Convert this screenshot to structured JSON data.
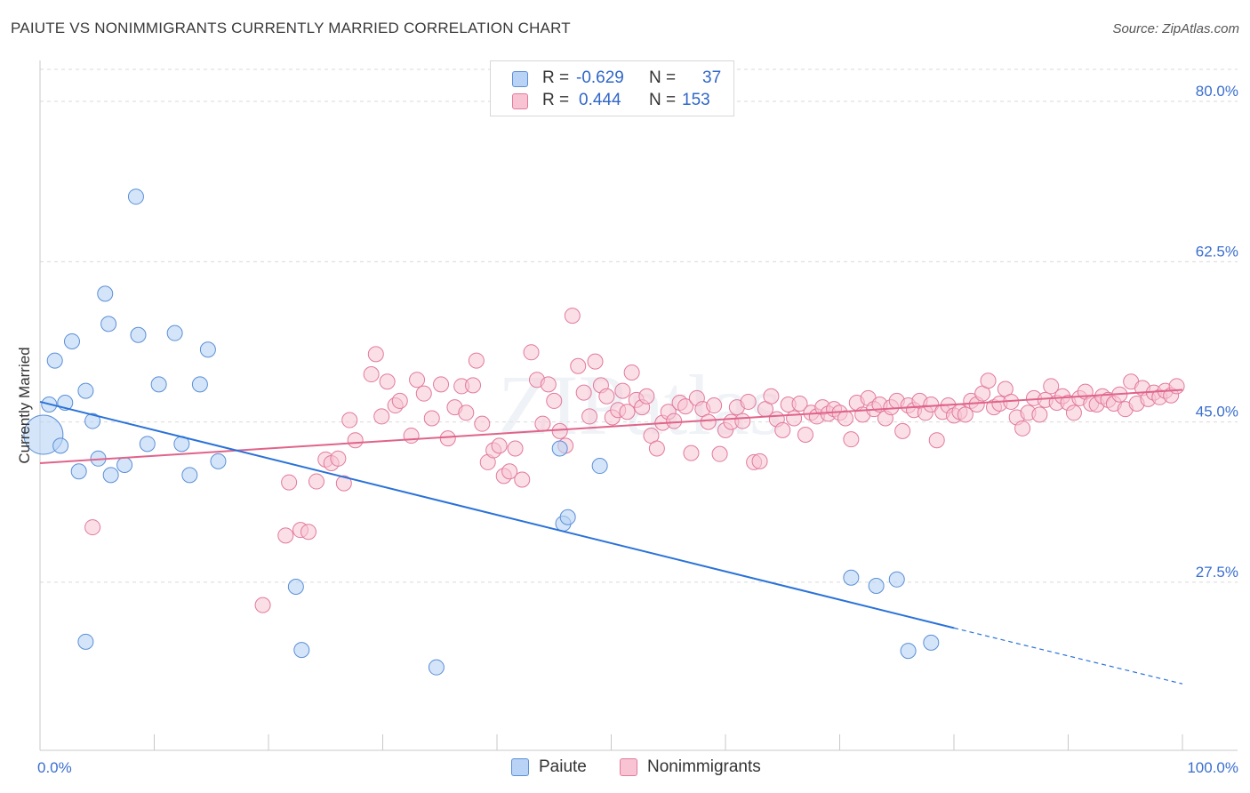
{
  "title": "PAIUTE VS NONIMMIGRANTS CURRENTLY MARRIED CORRELATION CHART",
  "source": "Source: ZipAtlas.com",
  "watermark": "ZIPatlas",
  "colors": {
    "paiute_fill": "#b8d3f5",
    "paiute_stroke": "#5b8fd6",
    "paiute_line": "#2a72d8",
    "nonimm_fill": "#f8c4d4",
    "nonimm_stroke": "#e27a9c",
    "nonimm_line": "#e0648a",
    "tick_label": "#3a6fcf",
    "grid": "#d9d9d9"
  },
  "legend": {
    "r_label": "R =",
    "n_label": "N =",
    "rows": [
      {
        "series": "Paiute",
        "r": "-0.629",
        "n": "37"
      },
      {
        "series": "Nonimmigrants",
        "r": "0.444",
        "n": "153"
      }
    ]
  },
  "chart_data": {
    "type": "scatter",
    "title": "PAIUTE VS NONIMMIGRANTS CURRENTLY MARRIED CORRELATION CHART",
    "xlabel": "",
    "ylabel": "Currently Married",
    "xlim": [
      0,
      100
    ],
    "ylim": [
      10.5,
      83.5
    ],
    "x_tick_labels": [
      {
        "value": 0,
        "label": "0.0%"
      },
      {
        "value": 100,
        "label": "100.0%"
      }
    ],
    "y_ticks": [
      {
        "value": 27.5,
        "label": "27.5%"
      },
      {
        "value": 45.0,
        "label": "45.0%"
      },
      {
        "value": 62.5,
        "label": "62.5%"
      },
      {
        "value": 80.0,
        "label": "80.0%"
      }
    ],
    "x_minor_ticks": [
      10,
      20,
      30,
      40,
      50,
      60,
      70,
      80,
      90,
      100
    ],
    "grid": true,
    "series": [
      {
        "name": "Paiute",
        "r": -0.629,
        "n": 37,
        "trend": {
          "x0": 0,
          "y0": 47.2,
          "x1": 80,
          "y1": 22.5,
          "dash_to_x": 100,
          "dash_to_y": 16.4
        },
        "points": [
          {
            "x": 0.3,
            "y": 43.6,
            "big": true
          },
          {
            "x": 0.8,
            "y": 46.9
          },
          {
            "x": 1.3,
            "y": 51.7
          },
          {
            "x": 1.8,
            "y": 42.4
          },
          {
            "x": 2.2,
            "y": 47.1
          },
          {
            "x": 2.8,
            "y": 53.8
          },
          {
            "x": 3.4,
            "y": 39.6
          },
          {
            "x": 4.0,
            "y": 48.4
          },
          {
            "x": 4.6,
            "y": 45.1
          },
          {
            "x": 5.1,
            "y": 41.0
          },
          {
            "x": 5.7,
            "y": 59.0
          },
          {
            "x": 6.0,
            "y": 55.7
          },
          {
            "x": 6.2,
            "y": 39.2
          },
          {
            "x": 7.4,
            "y": 40.3
          },
          {
            "x": 8.4,
            "y": 69.6
          },
          {
            "x": 8.6,
            "y": 54.5
          },
          {
            "x": 9.4,
            "y": 42.6
          },
          {
            "x": 10.4,
            "y": 49.1
          },
          {
            "x": 11.8,
            "y": 54.7
          },
          {
            "x": 12.4,
            "y": 42.6
          },
          {
            "x": 13.1,
            "y": 39.2
          },
          {
            "x": 14.0,
            "y": 49.1
          },
          {
            "x": 14.7,
            "y": 52.9
          },
          {
            "x": 15.6,
            "y": 40.7
          },
          {
            "x": 4.0,
            "y": 21.0
          },
          {
            "x": 22.4,
            "y": 27.0
          },
          {
            "x": 22.9,
            "y": 20.1
          },
          {
            "x": 34.7,
            "y": 18.2
          },
          {
            "x": 45.5,
            "y": 42.1
          },
          {
            "x": 45.8,
            "y": 33.9
          },
          {
            "x": 46.2,
            "y": 34.6
          },
          {
            "x": 49.0,
            "y": 40.2
          },
          {
            "x": 71.0,
            "y": 28.0
          },
          {
            "x": 73.2,
            "y": 27.1
          },
          {
            "x": 75.0,
            "y": 27.8
          },
          {
            "x": 76.0,
            "y": 20.0
          },
          {
            "x": 78.0,
            "y": 20.9
          }
        ]
      },
      {
        "name": "Nonimmigrants",
        "r": 0.444,
        "n": 153,
        "trend": {
          "x0": 0,
          "y0": 40.5,
          "x1": 100,
          "y1": 48.5
        },
        "points": [
          {
            "x": 4.6,
            "y": 33.5
          },
          {
            "x": 19.5,
            "y": 25.0
          },
          {
            "x": 21.5,
            "y": 32.6
          },
          {
            "x": 21.8,
            "y": 38.4
          },
          {
            "x": 22.8,
            "y": 33.2
          },
          {
            "x": 23.5,
            "y": 33.0
          },
          {
            "x": 24.2,
            "y": 38.5
          },
          {
            "x": 25.0,
            "y": 40.9
          },
          {
            "x": 25.5,
            "y": 40.5
          },
          {
            "x": 26.1,
            "y": 41.0
          },
          {
            "x": 26.6,
            "y": 38.3
          },
          {
            "x": 27.1,
            "y": 45.2
          },
          {
            "x": 27.6,
            "y": 43.0
          },
          {
            "x": 29.0,
            "y": 50.2
          },
          {
            "x": 29.4,
            "y": 52.4
          },
          {
            "x": 29.9,
            "y": 45.6
          },
          {
            "x": 30.4,
            "y": 49.4
          },
          {
            "x": 31.1,
            "y": 46.8
          },
          {
            "x": 32.5,
            "y": 43.5
          },
          {
            "x": 33.0,
            "y": 49.6
          },
          {
            "x": 33.6,
            "y": 48.1
          },
          {
            "x": 34.3,
            "y": 45.4
          },
          {
            "x": 35.1,
            "y": 49.1
          },
          {
            "x": 35.7,
            "y": 43.2
          },
          {
            "x": 36.3,
            "y": 46.6
          },
          {
            "x": 36.9,
            "y": 48.9
          },
          {
            "x": 37.3,
            "y": 46.0
          },
          {
            "x": 37.9,
            "y": 49.0
          },
          {
            "x": 38.2,
            "y": 51.7
          },
          {
            "x": 38.7,
            "y": 44.8
          },
          {
            "x": 39.2,
            "y": 40.6
          },
          {
            "x": 39.7,
            "y": 41.9
          },
          {
            "x": 40.2,
            "y": 42.4
          },
          {
            "x": 40.6,
            "y": 39.1
          },
          {
            "x": 41.1,
            "y": 39.6
          },
          {
            "x": 41.6,
            "y": 42.1
          },
          {
            "x": 42.2,
            "y": 38.7
          },
          {
            "x": 43.0,
            "y": 52.6
          },
          {
            "x": 43.5,
            "y": 49.6
          },
          {
            "x": 44.0,
            "y": 44.8
          },
          {
            "x": 44.5,
            "y": 49.1
          },
          {
            "x": 45.0,
            "y": 47.3
          },
          {
            "x": 45.5,
            "y": 44.0
          },
          {
            "x": 46.0,
            "y": 42.4
          },
          {
            "x": 46.6,
            "y": 56.6
          },
          {
            "x": 47.1,
            "y": 51.1
          },
          {
            "x": 47.6,
            "y": 48.2
          },
          {
            "x": 48.1,
            "y": 45.6
          },
          {
            "x": 48.6,
            "y": 51.6
          },
          {
            "x": 49.1,
            "y": 49.0
          },
          {
            "x": 49.6,
            "y": 47.8
          },
          {
            "x": 50.1,
            "y": 45.5
          },
          {
            "x": 50.6,
            "y": 46.3
          },
          {
            "x": 51.0,
            "y": 48.4
          },
          {
            "x": 51.4,
            "y": 46.1
          },
          {
            "x": 51.8,
            "y": 50.4
          },
          {
            "x": 52.2,
            "y": 47.4
          },
          {
            "x": 52.7,
            "y": 46.6
          },
          {
            "x": 53.1,
            "y": 47.8
          },
          {
            "x": 53.5,
            "y": 43.5
          },
          {
            "x": 54.0,
            "y": 42.1
          },
          {
            "x": 54.5,
            "y": 44.9
          },
          {
            "x": 55.0,
            "y": 46.1
          },
          {
            "x": 55.5,
            "y": 45.1
          },
          {
            "x": 56.0,
            "y": 47.1
          },
          {
            "x": 56.5,
            "y": 46.7
          },
          {
            "x": 57.0,
            "y": 41.6
          },
          {
            "x": 57.5,
            "y": 47.6
          },
          {
            "x": 58.0,
            "y": 46.4
          },
          {
            "x": 58.5,
            "y": 45.0
          },
          {
            "x": 59.0,
            "y": 46.8
          },
          {
            "x": 59.5,
            "y": 41.5
          },
          {
            "x": 60.0,
            "y": 44.1
          },
          {
            "x": 60.5,
            "y": 45.0
          },
          {
            "x": 61.0,
            "y": 46.6
          },
          {
            "x": 61.5,
            "y": 45.1
          },
          {
            "x": 62.0,
            "y": 47.2
          },
          {
            "x": 62.5,
            "y": 40.6
          },
          {
            "x": 63.0,
            "y": 40.7
          },
          {
            "x": 63.5,
            "y": 46.4
          },
          {
            "x": 64.0,
            "y": 47.8
          },
          {
            "x": 64.5,
            "y": 45.3
          },
          {
            "x": 65.0,
            "y": 44.1
          },
          {
            "x": 65.5,
            "y": 46.9
          },
          {
            "x": 66.0,
            "y": 45.4
          },
          {
            "x": 66.5,
            "y": 47.0
          },
          {
            "x": 67.0,
            "y": 43.6
          },
          {
            "x": 67.5,
            "y": 46.0
          },
          {
            "x": 68.0,
            "y": 45.6
          },
          {
            "x": 68.5,
            "y": 46.6
          },
          {
            "x": 69.0,
            "y": 45.9
          },
          {
            "x": 69.5,
            "y": 46.4
          },
          {
            "x": 70.0,
            "y": 46.0
          },
          {
            "x": 70.5,
            "y": 45.4
          },
          {
            "x": 71.0,
            "y": 43.1
          },
          {
            "x": 71.5,
            "y": 47.1
          },
          {
            "x": 72.0,
            "y": 45.8
          },
          {
            "x": 72.5,
            "y": 47.6
          },
          {
            "x": 73.0,
            "y": 46.4
          },
          {
            "x": 73.5,
            "y": 46.9
          },
          {
            "x": 74.0,
            "y": 45.4
          },
          {
            "x": 74.5,
            "y": 46.6
          },
          {
            "x": 75.0,
            "y": 47.3
          },
          {
            "x": 75.5,
            "y": 44.0
          },
          {
            "x": 76.0,
            "y": 46.8
          },
          {
            "x": 76.5,
            "y": 46.3
          },
          {
            "x": 77.0,
            "y": 47.3
          },
          {
            "x": 77.5,
            "y": 46.0
          },
          {
            "x": 78.0,
            "y": 46.9
          },
          {
            "x": 78.5,
            "y": 43.0
          },
          {
            "x": 79.0,
            "y": 46.1
          },
          {
            "x": 79.5,
            "y": 46.8
          },
          {
            "x": 80.0,
            "y": 45.7
          },
          {
            "x": 80.5,
            "y": 46.1
          },
          {
            "x": 81.0,
            "y": 45.8
          },
          {
            "x": 81.5,
            "y": 47.3
          },
          {
            "x": 82.0,
            "y": 46.9
          },
          {
            "x": 82.5,
            "y": 48.1
          },
          {
            "x": 83.0,
            "y": 49.5
          },
          {
            "x": 83.5,
            "y": 46.6
          },
          {
            "x": 84.0,
            "y": 47.0
          },
          {
            "x": 84.5,
            "y": 48.6
          },
          {
            "x": 85.0,
            "y": 47.2
          },
          {
            "x": 85.5,
            "y": 45.5
          },
          {
            "x": 86.0,
            "y": 44.3
          },
          {
            "x": 86.5,
            "y": 46.0
          },
          {
            "x": 87.0,
            "y": 47.6
          },
          {
            "x": 87.5,
            "y": 45.8
          },
          {
            "x": 88.0,
            "y": 47.4
          },
          {
            "x": 88.5,
            "y": 48.9
          },
          {
            "x": 89.0,
            "y": 47.1
          },
          {
            "x": 89.5,
            "y": 47.8
          },
          {
            "x": 90.0,
            "y": 47.1
          },
          {
            "x": 90.5,
            "y": 46.0
          },
          {
            "x": 91.0,
            "y": 47.6
          },
          {
            "x": 91.5,
            "y": 48.3
          },
          {
            "x": 92.0,
            "y": 47.0
          },
          {
            "x": 92.5,
            "y": 46.9
          },
          {
            "x": 93.0,
            "y": 47.8
          },
          {
            "x": 93.5,
            "y": 47.4
          },
          {
            "x": 94.0,
            "y": 47.0
          },
          {
            "x": 94.5,
            "y": 48.0
          },
          {
            "x": 95.0,
            "y": 46.4
          },
          {
            "x": 95.5,
            "y": 49.4
          },
          {
            "x": 96.0,
            "y": 47.0
          },
          {
            "x": 96.5,
            "y": 48.7
          },
          {
            "x": 97.0,
            "y": 47.5
          },
          {
            "x": 97.5,
            "y": 48.2
          },
          {
            "x": 98.0,
            "y": 47.7
          },
          {
            "x": 98.5,
            "y": 48.4
          },
          {
            "x": 99.0,
            "y": 47.9
          },
          {
            "x": 99.5,
            "y": 48.9
          },
          {
            "x": 31.5,
            "y": 47.3
          }
        ]
      }
    ]
  }
}
